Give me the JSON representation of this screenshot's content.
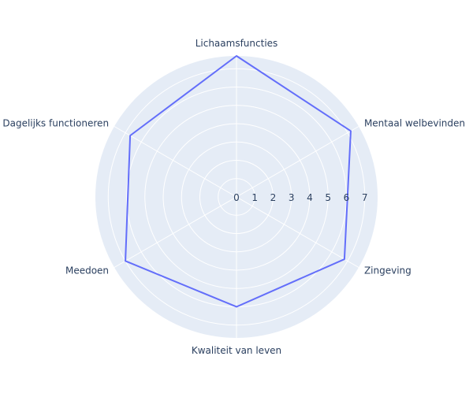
{
  "chart_data": {
    "type": "radar",
    "title": "",
    "categories": [
      "Lichaamsfuncties",
      "Mentaal welbevinden",
      "Zingeving",
      "Kwaliteit van leven",
      "Meedoen",
      "Dagelijks functioneren"
    ],
    "series": [
      {
        "values": [
          7.7,
          7.2,
          6.8,
          6.0,
          7.0,
          6.7
        ]
      }
    ],
    "radial_ticks": [
      "0",
      "1",
      "2",
      "3",
      "4",
      "5",
      "6",
      "7"
    ],
    "radial_range": [
      0,
      7.7
    ],
    "grid": true,
    "colors": {
      "line": "#636efa",
      "polar_bg": "#e5ecf6",
      "grid": "#ffffff",
      "text": "#2a3f5f"
    }
  }
}
